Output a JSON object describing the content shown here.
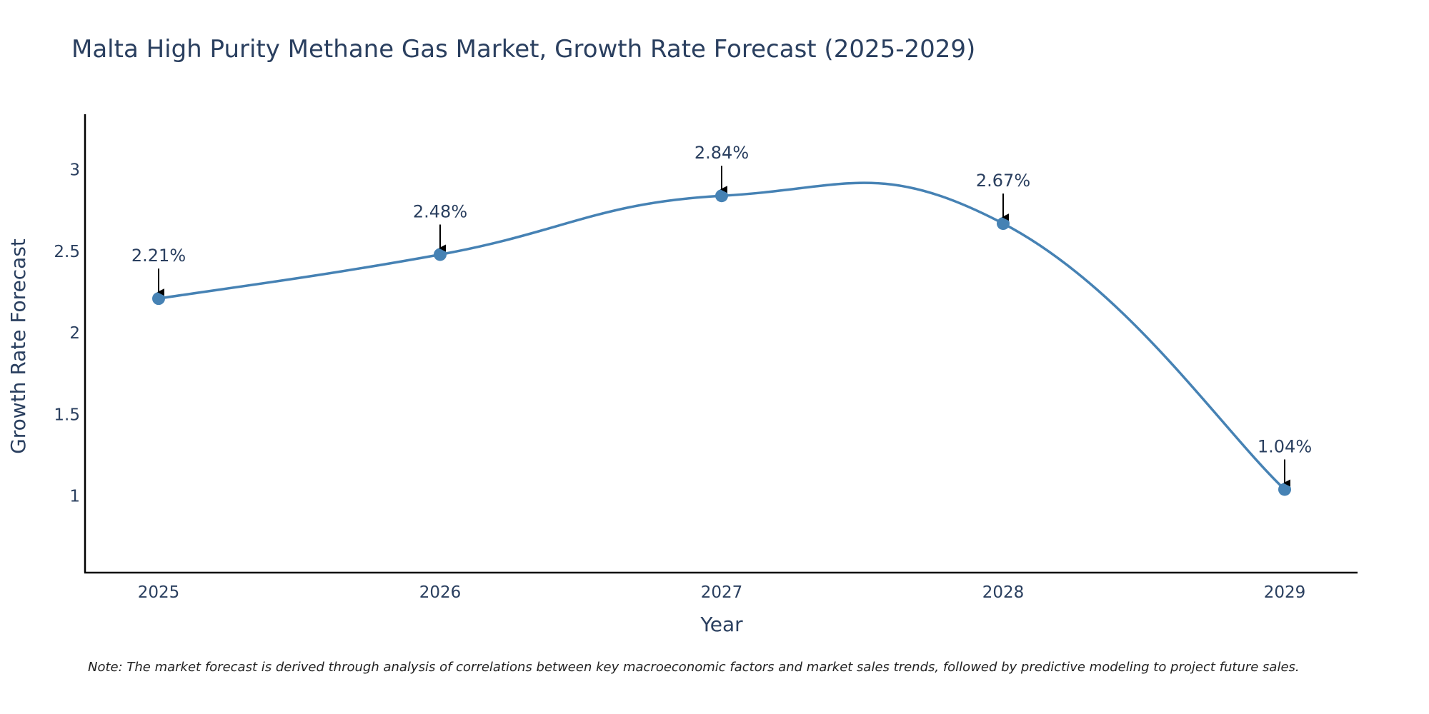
{
  "colors": {
    "series": "#4682b4",
    "text": "#2a3f5f",
    "axis": "#000000",
    "arrow": "#000000",
    "note": "#222222"
  },
  "chart_data": {
    "type": "line",
    "title": "Malta High Purity Methane Gas Market, Growth Rate Forecast (2025-2029)",
    "xlabel": "Year",
    "ylabel": "Growth Rate Forecast",
    "categories": [
      "2025",
      "2026",
      "2027",
      "2028",
      "2029"
    ],
    "series": [
      {
        "name": "Growth Rate Forecast",
        "values": [
          2.21,
          2.48,
          2.84,
          2.67,
          1.04
        ],
        "labels": [
          "2.21%",
          "2.48%",
          "2.84%",
          "2.67%",
          "1.04%"
        ]
      }
    ],
    "ylim": [
      0.53,
      3.34
    ],
    "yticks": [
      1,
      1.5,
      2,
      2.5,
      3
    ],
    "ytick_labels": [
      "1",
      "1.5",
      "2",
      "2.5",
      "3"
    ],
    "line_shape": "spline",
    "grid": false,
    "legend": "none"
  },
  "note": "Note: The market forecast is derived through analysis of correlations between key macroeconomic factors and market sales trends, followed by predictive modeling to project future sales."
}
